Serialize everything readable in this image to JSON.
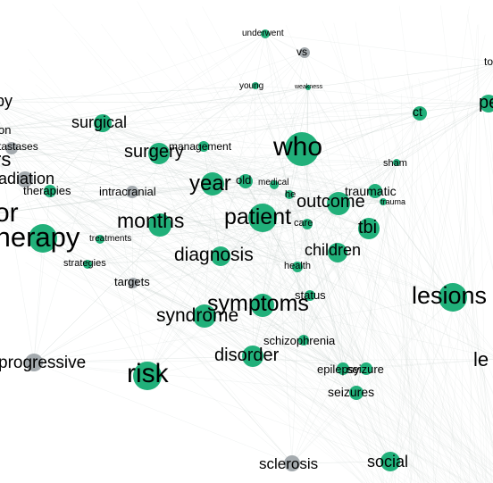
{
  "colors": {
    "green": "#21b07a",
    "gray": "#a4aaae",
    "edge": "#cfd6d3",
    "text": "#000000"
  },
  "nodes": [
    {
      "label": "underwent",
      "color": "green"
    },
    {
      "label": "vs",
      "color": "gray"
    },
    {
      "label": "to",
      "color": "none"
    },
    {
      "label": "py",
      "color": "none"
    },
    {
      "label": "young",
      "color": "green"
    },
    {
      "label": "weakness",
      "color": "green"
    },
    {
      "label": "ct",
      "color": "green"
    },
    {
      "label": "pe",
      "color": "green"
    },
    {
      "label": "surgical",
      "color": "green"
    },
    {
      "label": "on",
      "color": "none"
    },
    {
      "label": "tastases",
      "color": "gray"
    },
    {
      "label": "management",
      "color": "green"
    },
    {
      "label": "who",
      "color": "green"
    },
    {
      "label": "rs",
      "color": "none"
    },
    {
      "label": "surgery",
      "color": "green"
    },
    {
      "label": "sham",
      "color": "green"
    },
    {
      "label": "adiation",
      "color": "gray"
    },
    {
      "label": "therapies",
      "color": "green"
    },
    {
      "label": "intracranial",
      "color": "gray"
    },
    {
      "label": "year",
      "color": "green"
    },
    {
      "label": "old",
      "color": "green"
    },
    {
      "label": "medical",
      "color": "green"
    },
    {
      "label": "traumatic",
      "color": "green"
    },
    {
      "label": "outcome",
      "color": "green"
    },
    {
      "label": "he",
      "color": "green"
    },
    {
      "label": "trauma",
      "color": "green"
    },
    {
      "label": "or",
      "color": "none"
    },
    {
      "label": "months",
      "color": "green"
    },
    {
      "label": "patient",
      "color": "green"
    },
    {
      "label": "care",
      "color": "green"
    },
    {
      "label": "tbi",
      "color": "green"
    },
    {
      "label": "therapy",
      "color": "green"
    },
    {
      "label": "treatments",
      "color": "green"
    },
    {
      "label": "children",
      "color": "green"
    },
    {
      "label": "diagnosis",
      "color": "green"
    },
    {
      "label": "strategies",
      "color": "green"
    },
    {
      "label": "health",
      "color": "green"
    },
    {
      "label": "targets",
      "color": "gray"
    },
    {
      "label": "lesions",
      "color": "green"
    },
    {
      "label": "status",
      "color": "green"
    },
    {
      "label": "symptoms",
      "color": "green"
    },
    {
      "label": "syndrome",
      "color": "green"
    },
    {
      "label": "schizophrenia",
      "color": "green"
    },
    {
      "label": "disorder",
      "color": "green"
    },
    {
      "label": "progressive",
      "color": "gray"
    },
    {
      "label": "le",
      "color": "none"
    },
    {
      "label": "risk",
      "color": "green"
    },
    {
      "label": "epilepsy",
      "color": "green"
    },
    {
      "label": "seizure",
      "color": "green"
    },
    {
      "label": "seizures",
      "color": "green"
    },
    {
      "label": "sclerosis",
      "color": "gray"
    },
    {
      "label": "social",
      "color": "green"
    }
  ]
}
